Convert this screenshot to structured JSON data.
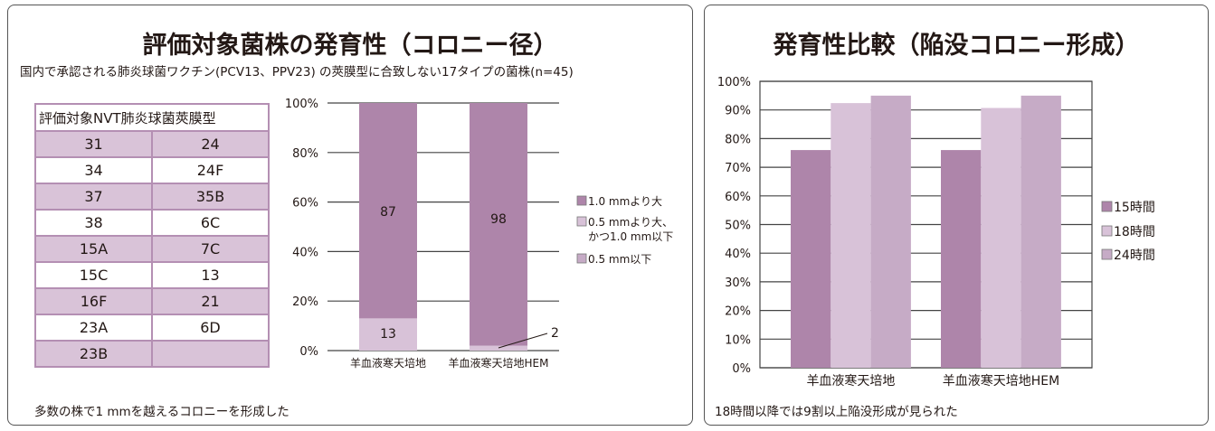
{
  "left_panel": {
    "title": "評価対象菌株の発育性（コロニー径）",
    "subtitle": "国内で承認される肺炎球菌ワクチン(PCV13、PPV23) の莢膜型に合致しない17タイプの菌株(n=45)",
    "footer": "多数の株で1 mmを越えるコロニーを形成した",
    "table": {
      "header": "評価対象NVT肺炎球菌莢膜型",
      "rows": [
        [
          "31",
          "24"
        ],
        [
          "34",
          "24F"
        ],
        [
          "37",
          "35B"
        ],
        [
          "38",
          "6C"
        ],
        [
          "15A",
          "7C"
        ],
        [
          "15C",
          "13"
        ],
        [
          "16F",
          "21"
        ],
        [
          "23A",
          "6D"
        ],
        [
          "23B",
          ""
        ]
      ]
    }
  },
  "right_panel": {
    "title": "発育性比較（陥没コロニー形成）",
    "footer": "18時間以降では9割以上陥没形成が見られた"
  },
  "chart_data": [
    {
      "type": "bar",
      "stacked": true,
      "categories": [
        "羊血液寒天培地",
        "羊血液寒天培地HEM"
      ],
      "series": [
        {
          "name": "0.5 mm以下",
          "values": [
            0,
            0
          ],
          "color": "#c6abc6"
        },
        {
          "name": "0.5 mmより大、かつ1.0 mm以下",
          "values": [
            13,
            2
          ],
          "color": "#d8c2d8"
        },
        {
          "name": "1.0 mmより大",
          "values": [
            87,
            98
          ],
          "color": "#ae85aa"
        }
      ],
      "legend_order": [
        "1.0 mmより大",
        "0.5 mmより大、\nかつ1.0 mm以下",
        "0.5 mm以下"
      ],
      "data_labels": [
        "87",
        "13",
        "98",
        "2"
      ],
      "yticks": [
        "0%",
        "20%",
        "40%",
        "60%",
        "80%",
        "100%"
      ],
      "ylim": [
        0,
        100
      ],
      "legend_position": "right",
      "grid": true
    },
    {
      "type": "bar",
      "categories": [
        "羊血液寒天培地",
        "羊血液寒天培地HEM"
      ],
      "series": [
        {
          "name": "15時間",
          "values": [
            76,
            76
          ],
          "color": "#ae85aa"
        },
        {
          "name": "18時間",
          "values": [
            92.4,
            90.7
          ],
          "color": "#d8c2d8"
        },
        {
          "name": "24時間",
          "values": [
            95,
            95
          ],
          "color": "#c6abc6"
        }
      ],
      "yticks": [
        "0%",
        "10%",
        "20%",
        "30%",
        "40%",
        "50%",
        "60%",
        "70%",
        "80%",
        "90%",
        "100%"
      ],
      "ylim": [
        0,
        100
      ],
      "legend_position": "right",
      "grid": true
    }
  ]
}
